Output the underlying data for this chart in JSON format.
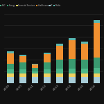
{
  "categories": [
    "2009",
    "2010",
    "2011",
    "2012",
    "2013",
    "2014",
    "2015",
    "2016"
  ],
  "series": {
    "IT": [
      1.5,
      1.5,
      1.5,
      1.5,
      1.5,
      1.5,
      1.5,
      1.5
    ],
    "Financial Services": [
      0.8,
      0.8,
      0.8,
      0.8,
      0.8,
      0.8,
      0.8,
      0.8
    ],
    "B2C": [
      1.0,
      1.0,
      0.6,
      1.0,
      1.2,
      1.2,
      1.2,
      1.5
    ],
    "Energy": [
      1.5,
      1.8,
      0.8,
      1.8,
      2.2,
      2.5,
      2.2,
      2.5
    ],
    "Healthcare": [
      2.5,
      1.5,
      0.8,
      2.0,
      3.5,
      4.5,
      4.0,
      8.5
    ],
    "Media": [
      0.4,
      0.4,
      0.3,
      0.4,
      0.5,
      0.5,
      0.5,
      0.6
    ]
  },
  "colors": {
    "IT": "#a8cdd8",
    "Financial Services": "#f0d060",
    "B2C": "#4db88a",
    "Energy": "#3a9a70",
    "Healthcare": "#f09030",
    "Media": "#5ab8b0"
  },
  "background_color": "#111111",
  "plot_bg_color": "#111111",
  "grid_color": "#333333",
  "text_color": "#aaaaaa",
  "bar_width": 0.55,
  "ylim": [
    0,
    17
  ]
}
